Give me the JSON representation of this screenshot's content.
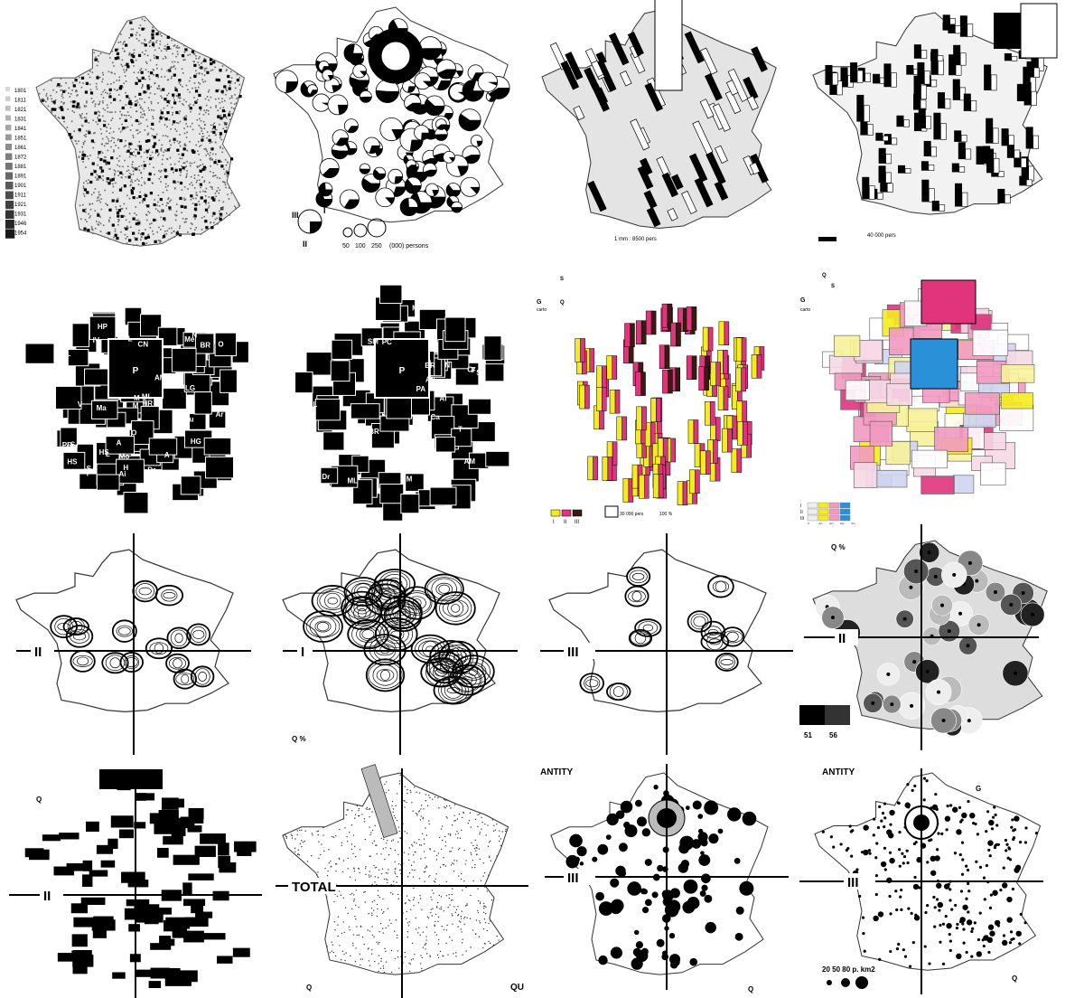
{
  "title": "",
  "colors": {
    "ink": "#111111",
    "paper": "#ffffff",
    "grey": "#d9d9d9",
    "yellow": "#f5ec1f",
    "magenta": "#e0357d",
    "dark": "#3a1a12",
    "blue": "#2a90d8",
    "pink": "#f29ac0",
    "lightyellow": "#f7f29a"
  },
  "panels": [
    {
      "id": "p1",
      "type": "dot-density-map",
      "legend_years": [
        "1801",
        "1811",
        "1821",
        "1831",
        "1841",
        "1851",
        "1861",
        "1872",
        "1881",
        "1891",
        "1901",
        "1911",
        "1921",
        "1931",
        "1946",
        "1954"
      ]
    },
    {
      "id": "p2",
      "type": "pie-symbol-map",
      "legend_roman": [
        "III",
        "I",
        "II"
      ],
      "legend_sizes": [
        "50",
        "100",
        "250",
        "(000) persons"
      ]
    },
    {
      "id": "p3",
      "type": "bar-arrow-map",
      "scale_text": "1 mm : 8500 pers"
    },
    {
      "id": "p4",
      "type": "bar-columns-map",
      "scale_text": "40 000 pers"
    },
    {
      "id": "p5",
      "type": "cartogram-black",
      "departments": [
        "PC",
        "N",
        "Ar",
        "Ai",
        "Me",
        "SM",
        "O",
        "M",
        "Mo",
        "BR",
        "Ca",
        "F",
        "CN",
        "IV",
        "S",
        "Ma",
        "E",
        "M",
        "HR",
        "M",
        "LA",
        "ML",
        "S",
        "P",
        "A",
        "V",
        "L",
        "S",
        "D",
        "SO",
        "O",
        "J",
        "HS",
        "CM",
        "HV",
        "L",
        "C",
        "N",
        "SL",
        "HS",
        "A",
        "Cr",
        "D",
        "PD",
        "L",
        "Ca",
        "H",
        "R",
        "I",
        "AM",
        "LG",
        "L",
        "Co",
        "H",
        "Dr",
        "PA",
        "HP",
        "HG",
        "T",
        "V",
        "BR",
        "Au",
        "PO"
      ]
    },
    {
      "id": "p6",
      "type": "cartogram-outline",
      "departments": [
        "PC",
        "N",
        "SM",
        "Ai",
        "Ar",
        "Mo",
        "BR",
        "CN",
        "F",
        "M",
        "LA",
        "ML",
        "P",
        "S",
        "M",
        "HR",
        "HS",
        "CM",
        "HV",
        "C",
        "L",
        "Cr",
        "Co",
        "PD",
        "H",
        "Ca",
        "Dr",
        "PA",
        "HP",
        "HG",
        "T",
        "AM",
        "BR",
        "Au",
        "PO"
      ]
    },
    {
      "id": "p7",
      "type": "colored-bar-cartogram",
      "legend": [
        "I",
        "II",
        "III"
      ],
      "scale_text": "30 000 pers",
      "pct_text": "100 %",
      "axis": [
        "G",
        "S",
        "Q",
        "carto"
      ]
    },
    {
      "id": "p8",
      "type": "colored-hatch-cartogram",
      "axis": [
        "G",
        "Q",
        "S",
        "carto"
      ],
      "legend_rows": [
        "I",
        "II",
        "III"
      ],
      "legend_vals": [
        "0",
        "40",
        "50",
        "55",
        "30"
      ]
    },
    {
      "id": "p9",
      "type": "isoline-map",
      "axis_label": "II"
    },
    {
      "id": "p10",
      "type": "isoline-map-dense",
      "axis_label": "I",
      "corner_text": "Q %"
    },
    {
      "id": "p11",
      "type": "isoline-map-light",
      "axis_label": "III"
    },
    {
      "id": "p12",
      "type": "choropleth-hatched",
      "axis_label": "II",
      "legend_vals": [
        "51",
        "56"
      ],
      "corner_text": "Q %"
    },
    {
      "id": "p13",
      "type": "rect-symbol-map",
      "axis_label": "II",
      "corner_text": "Q"
    },
    {
      "id": "p14",
      "type": "stipple-map",
      "axis_label": "TOTAL",
      "corner_text": "QU",
      "q_text": "Q"
    },
    {
      "id": "p15",
      "type": "circle-symbol-map",
      "axis_label": "III",
      "heading": "ANTITY",
      "corner_text": "Q"
    },
    {
      "id": "p16",
      "type": "dot-graduated-map",
      "axis_label": "III",
      "heading": "ANTITY",
      "legend_text": "20  50  80  p. km2",
      "corner_text": "Q",
      "g_text": "G"
    }
  ]
}
